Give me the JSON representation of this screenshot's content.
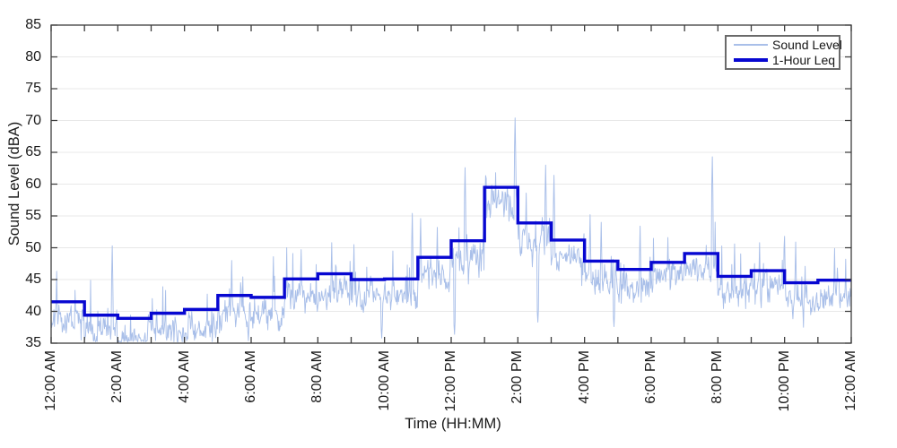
{
  "figure": {
    "background": "#ffffff"
  },
  "axis_style": {
    "axis_color": "#3d3d3d",
    "grid_color": "#e8e8e8",
    "tick_label_color": "#191919",
    "grid": "horizontal-only",
    "tick_direction": "in"
  },
  "chart_data": {
    "type": "line",
    "title": "",
    "xlabel": "Time (HH:MM)",
    "ylabel": "Sound Level (dBA)",
    "xlim_hours": [
      0,
      24
    ],
    "ylim": [
      35,
      85
    ],
    "y_tick_values": [
      35,
      40,
      45,
      50,
      55,
      60,
      65,
      70,
      75,
      80,
      85
    ],
    "x_tick_hours": [
      0,
      2,
      4,
      6,
      8,
      10,
      12,
      14,
      16,
      18,
      20,
      22,
      24
    ],
    "x_tick_labels": [
      "12:00 AM",
      "2:00 AM",
      "4:00 AM",
      "6:00 AM",
      "8:00 AM",
      "10:00 AM",
      "12:00 PM",
      "2:00 PM",
      "4:00 PM",
      "6:00 PM",
      "8:00 PM",
      "10:00 PM",
      "12:00 AM"
    ],
    "x_minor_tick_every_hours": 1,
    "legend": {
      "position": "top-right",
      "entries": [
        "Sound Level",
        "1-Hour Leq"
      ]
    },
    "series": [
      {
        "name": "Sound Level",
        "kind": "raw-minute-data",
        "color": "#a9bfe9",
        "line_width": 1,
        "synthesis": {
          "seed": 20240101,
          "offset_below_leq_db": 2.7,
          "ar1_phi": 0.45,
          "innovation_amp_db": 2.6,
          "peak_probability": 0.055,
          "peak_extra_db_max": 5.5,
          "dip_probability": 0.04,
          "floor_db": 35.15
        },
        "notable_peaks": [
          {
            "time": "00:10",
            "dBA": 46.3
          },
          {
            "time": "01:50",
            "dBA": 50.3
          },
          {
            "time": "05:25",
            "dBA": 48.0
          },
          {
            "time": "06:40",
            "dBA": 48.6
          },
          {
            "time": "07:30",
            "dBA": 49.7
          },
          {
            "time": "08:25",
            "dBA": 50.8
          },
          {
            "time": "09:05",
            "dBA": 50.5
          },
          {
            "time": "10:15",
            "dBA": 49.5
          },
          {
            "time": "10:50",
            "dBA": 55.4
          },
          {
            "time": "11:05",
            "dBA": 54.6
          },
          {
            "time": "11:35",
            "dBA": 53.2
          },
          {
            "time": "12:25",
            "dBA": 62.6
          },
          {
            "time": "13:20",
            "dBA": 61.8
          },
          {
            "time": "13:55",
            "dBA": 70.4
          },
          {
            "time": "14:50",
            "dBA": 63.0
          },
          {
            "time": "15:05",
            "dBA": 61.4
          },
          {
            "time": "16:10",
            "dBA": 55.2
          },
          {
            "time": "16:30",
            "dBA": 54.0
          },
          {
            "time": "17:40",
            "dBA": 53.4
          },
          {
            "time": "18:30",
            "dBA": 51.6
          },
          {
            "time": "19:50",
            "dBA": 64.3
          },
          {
            "time": "20:30",
            "dBA": 50.6
          },
          {
            "time": "21:15",
            "dBA": 50.8
          },
          {
            "time": "22:00",
            "dBA": 51.8
          },
          {
            "time": "22:20",
            "dBA": 50.9
          },
          {
            "time": "23:30",
            "dBA": 49.9
          },
          {
            "time": "23:50",
            "dBA": 48.2
          }
        ],
        "notable_dips": [
          {
            "time": "05:55",
            "dBA": 35.4
          },
          {
            "time": "09:55",
            "dBA": 35.8
          },
          {
            "time": "12:06",
            "dBA": 36.4
          },
          {
            "time": "14:36",
            "dBA": 38.3
          },
          {
            "time": "16:53",
            "dBA": 37.6
          }
        ]
      },
      {
        "name": "1-Hour Leq",
        "kind": "hourly-step",
        "color": "#0707d1",
        "line_width": 3.4,
        "note": "one value per hour, first hour starts 12:00 AM",
        "values": [
          41.5,
          39.4,
          38.9,
          39.7,
          40.3,
          42.5,
          42.2,
          45.1,
          45.9,
          45.0,
          45.1,
          48.5,
          51.1,
          59.5,
          53.9,
          51.2,
          47.9,
          46.6,
          47.7,
          49.1,
          45.5,
          46.4,
          44.5,
          44.9
        ]
      }
    ]
  }
}
